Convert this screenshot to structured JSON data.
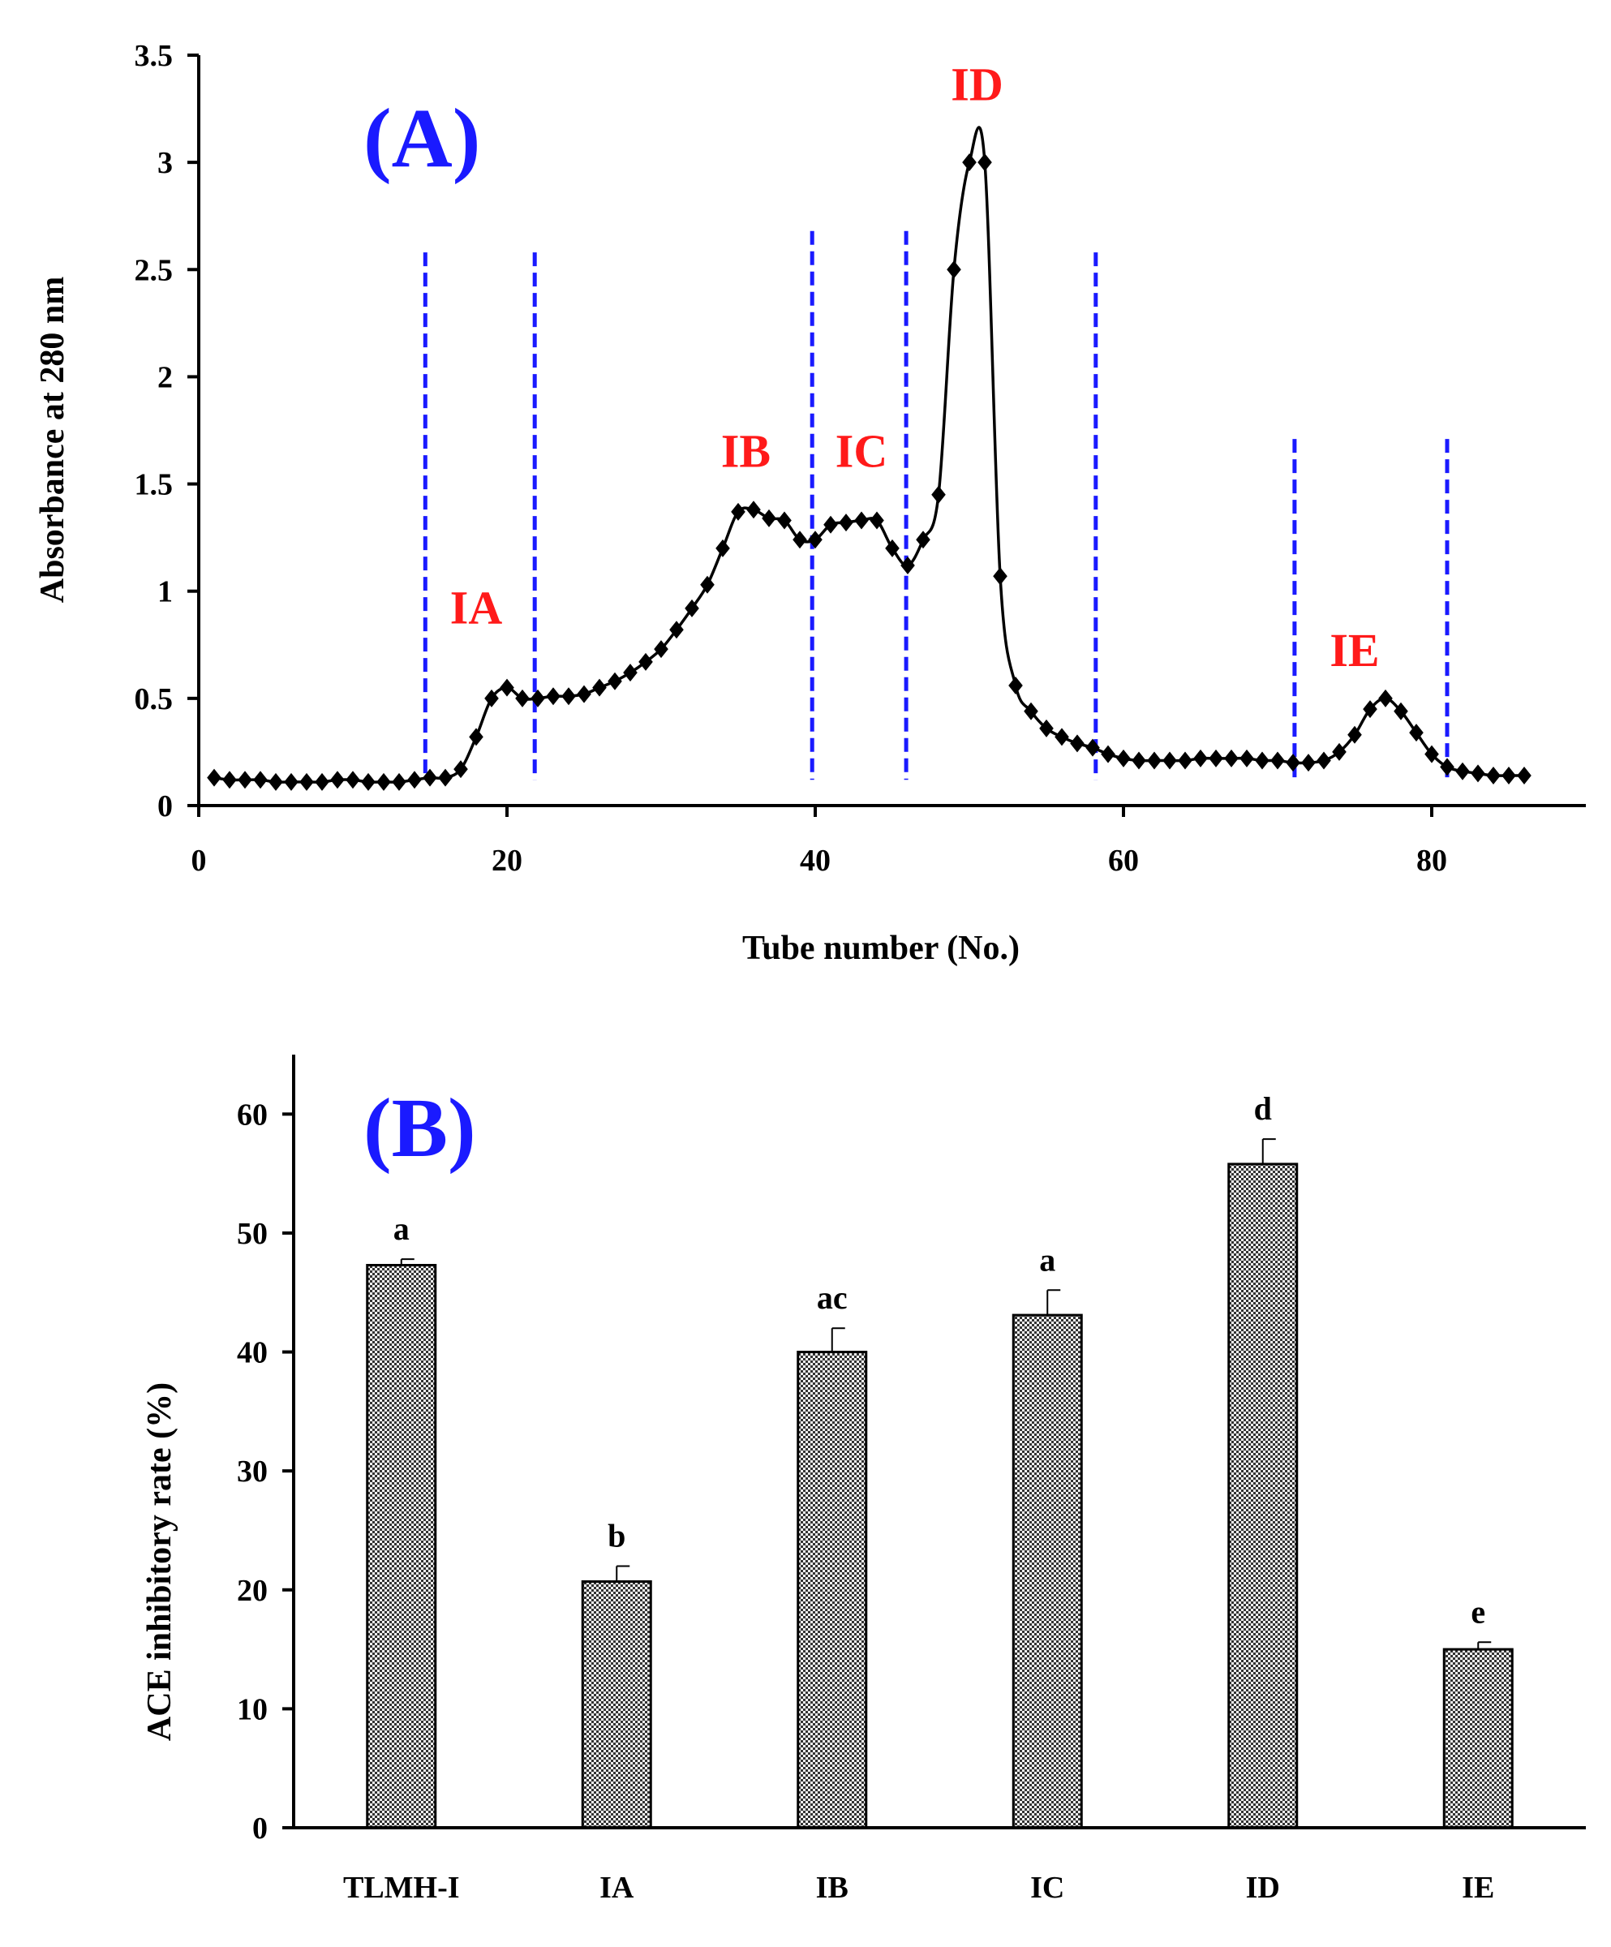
{
  "chart_data": [
    {
      "type": "line",
      "panel_label": "(A)",
      "title": "",
      "xlabel": "Tube number (No.)",
      "ylabel": "Absorbance  at 280 nm",
      "xlim": [
        0,
        90
      ],
      "ylim": [
        0,
        3.5
      ],
      "x_ticks": [
        0,
        20,
        40,
        60,
        80
      ],
      "x_tick_labels": [
        "0",
        "20",
        "40",
        "60",
        "80"
      ],
      "y_ticks": [
        0,
        0.5,
        1,
        1.5,
        2,
        2.5,
        3,
        3.5
      ],
      "y_tick_labels": [
        "0",
        "0.5",
        "1",
        "1.5",
        "2",
        "2.5",
        "3",
        "3.5"
      ],
      "grid": false,
      "series": [
        {
          "name": "Absorbance",
          "color": "#000000",
          "marker": "diamond",
          "x": [
            1,
            2,
            3,
            4,
            5,
            6,
            7,
            8,
            9,
            10,
            11,
            12,
            13,
            14,
            15,
            16,
            17,
            18,
            19,
            20,
            21,
            22,
            23,
            24,
            25,
            26,
            27,
            28,
            29,
            30,
            31,
            32,
            33,
            34,
            35,
            36,
            37,
            38,
            39,
            40,
            41,
            42,
            43,
            44,
            45,
            46,
            47,
            48,
            49,
            50,
            51,
            52,
            53,
            54,
            55,
            56,
            57,
            58,
            59,
            60,
            61,
            62,
            63,
            64,
            65,
            66,
            67,
            68,
            69,
            70,
            71,
            72,
            73,
            74,
            75,
            76,
            77,
            78,
            79,
            80,
            81,
            82,
            83,
            84,
            85,
            86
          ],
          "y": [
            0.13,
            0.12,
            0.12,
            0.12,
            0.11,
            0.11,
            0.11,
            0.11,
            0.12,
            0.12,
            0.11,
            0.11,
            0.11,
            0.12,
            0.13,
            0.13,
            0.17,
            0.32,
            0.5,
            0.55,
            0.5,
            0.5,
            0.51,
            0.51,
            0.52,
            0.55,
            0.58,
            0.62,
            0.67,
            0.73,
            0.82,
            0.92,
            1.03,
            1.2,
            1.37,
            1.38,
            1.34,
            1.33,
            1.24,
            1.24,
            1.31,
            1.32,
            1.33,
            1.33,
            1.2,
            1.12,
            1.24,
            1.45,
            2.5,
            3.0,
            3.0,
            1.07,
            0.56,
            0.44,
            0.36,
            0.32,
            0.29,
            0.27,
            0.24,
            0.22,
            0.21,
            0.21,
            0.21,
            0.21,
            0.22,
            0.22,
            0.22,
            0.22,
            0.21,
            0.21,
            0.2,
            0.2,
            0.21,
            0.25,
            0.33,
            0.45,
            0.5,
            0.44,
            0.34,
            0.24,
            0.18,
            0.16,
            0.15,
            0.14,
            0.14,
            0.14
          ]
        }
      ],
      "dividers": [
        {
          "x": 14.7,
          "top": 2.58
        },
        {
          "x": 21.8,
          "top": 2.58
        },
        {
          "x": 39.8,
          "top": 2.68
        },
        {
          "x": 45.9,
          "top": 2.68
        },
        {
          "x": 58.2,
          "top": 2.58
        },
        {
          "x": 71.1,
          "top": 1.71
        },
        {
          "x": 81.0,
          "top": 1.71
        }
      ],
      "divider_color": "#1a1aff",
      "fraction_color": "#ff1a1a",
      "fraction_labels": [
        {
          "text": "IA",
          "x": 18.0,
          "y": 0.85
        },
        {
          "text": "IB",
          "x": 35.5,
          "y": 1.58
        },
        {
          "text": "IC",
          "x": 43.0,
          "y": 1.58
        },
        {
          "text": "ID",
          "x": 50.5,
          "y": 3.29
        },
        {
          "text": "IE",
          "x": 75.0,
          "y": 0.65
        }
      ]
    },
    {
      "type": "bar",
      "panel_label": "(B)",
      "title": "",
      "xlabel": "",
      "ylabel": "ACE inhibitory rate (%)",
      "ylim": [
        0,
        65
      ],
      "y_ticks": [
        0,
        10,
        20,
        30,
        40,
        50,
        60
      ],
      "y_tick_labels": [
        "0",
        "10",
        "20",
        "30",
        "40",
        "50",
        "60"
      ],
      "grid": false,
      "categories": [
        "TLMH-I",
        "IA",
        "IB",
        "IC",
        "ID",
        "IE"
      ],
      "values": [
        47.3,
        20.7,
        40.0,
        43.1,
        55.8,
        15.0
      ],
      "errors": [
        0.5,
        1.3,
        2.0,
        2.1,
        2.1,
        0.6
      ],
      "significance": [
        "a",
        "b",
        "ac",
        "a",
        "d",
        "e"
      ],
      "bar_pattern": "crosshatch"
    }
  ],
  "colors": {
    "panel_label": "#1a1aff",
    "fraction_label": "#ff1a1a",
    "axis": "#000000"
  }
}
